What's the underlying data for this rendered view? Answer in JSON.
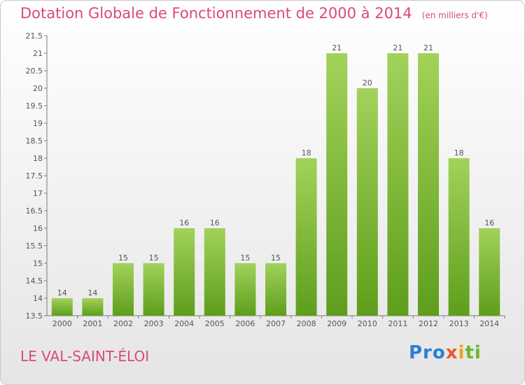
{
  "header": {
    "title": "Dotation Globale de Fonctionnement de 2000 à 2014",
    "subtitle": "(en milliers d'€)"
  },
  "commune": "LE VAL-SAINT-ÉLOI",
  "logo": {
    "text": "Proxiti",
    "colors": [
      "#2a7fd4",
      "#e85a2a",
      "#f0a020",
      "#6ab82a"
    ]
  },
  "colors": {
    "bar_light": "#a2d25a",
    "bar_dark": "#5e9e1c",
    "accent": "#d94a7a",
    "axis": "#7a7a7a"
  },
  "chart_data": {
    "type": "bar",
    "categories": [
      "2000",
      "2001",
      "2002",
      "2003",
      "2004",
      "2005",
      "2006",
      "2007",
      "2008",
      "2009",
      "2010",
      "2011",
      "2012",
      "2013",
      "2014"
    ],
    "values": [
      14,
      14,
      15,
      15,
      16,
      16,
      15,
      15,
      18,
      21,
      20,
      21,
      21,
      18,
      16
    ],
    "value_labels": [
      "14",
      "14",
      "15",
      "15",
      "16",
      "16",
      "15",
      "15",
      "18",
      "21",
      "20",
      "21",
      "21",
      "18",
      "16"
    ],
    "ylim": [
      13.5,
      21.5
    ],
    "yticks": [
      "13.5",
      "14",
      "14.5",
      "15",
      "15.5",
      "16",
      "16.5",
      "17",
      "17.5",
      "18",
      "18.5",
      "19",
      "19.5",
      "20",
      "20.5",
      "21",
      "21.5"
    ],
    "grid": false,
    "title": "Dotation Globale de Fonctionnement de 2000 à 2014",
    "xlabel": "",
    "ylabel": ""
  }
}
